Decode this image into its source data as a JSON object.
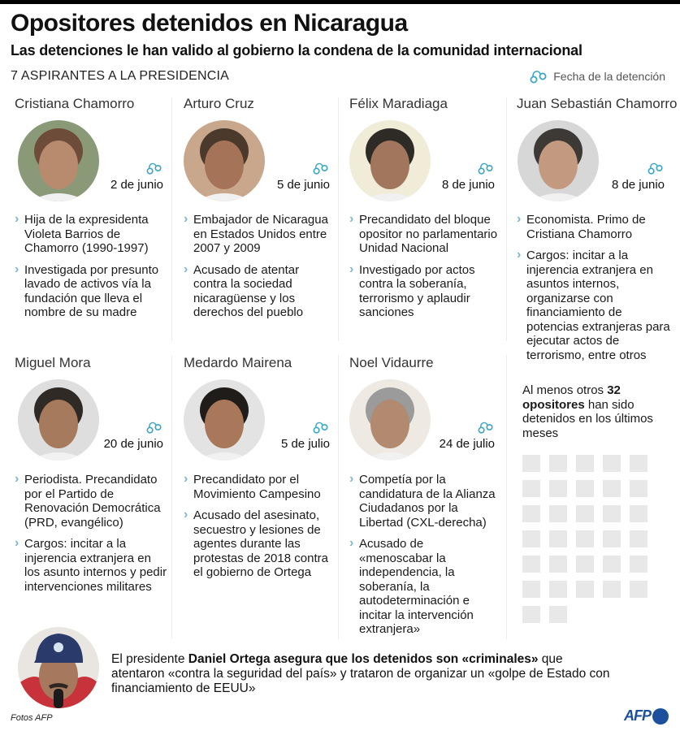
{
  "header": {
    "title": "Opositores detenidos en Nicaragua",
    "subtitle": "Las detenciones le han valido al gobierno la condena de la comunidad internacional",
    "section_label": "7 ASPIRANTES A LA PRESIDENCIA",
    "legend": {
      "icon": "handcuffs-icon",
      "label": "Fecha de la detención"
    }
  },
  "colors": {
    "accent": "#3aa6c4",
    "bullet": "#7fb6cf",
    "grid_square": "#e8e8e8",
    "afp_blue": "#1c4f9c",
    "separator": "#ececec"
  },
  "candidates": [
    {
      "name": "Cristiana Chamorro",
      "date": "2 de junio",
      "photo_tone": [
        "#b88a6e",
        "#6d4c3a",
        "#8a9a78"
      ],
      "bullets": [
        "Hija de la expresidenta Violeta Barrios de Chamorro (1990-1997)",
        "Investigada por presunto lavado de activos vía la fundación que lleva el nombre de su madre"
      ]
    },
    {
      "name": "Arturo Cruz",
      "date": "5 de junio",
      "photo_tone": [
        "#a57458",
        "#4b3a2c",
        "#c9a78c"
      ],
      "bullets": [
        "Embajador de Nicaragua en Estados Unidos entre 2007 y 2009",
        "Acusado de atentar contra la sociedad nicaragüense y los derechos del pueblo"
      ]
    },
    {
      "name": "Félix Maradiaga",
      "date": "8 de junio",
      "photo_tone": [
        "#a1765c",
        "#2e2a26",
        "#f0ecd8"
      ],
      "bullets": [
        "Precandidato del bloque opositor no parlamentario Unidad Nacional",
        "Investigado por actos contra la soberanía, terrorismo y aplaudir sanciones"
      ]
    },
    {
      "name": "Juan Sebastián Chamorro",
      "date": "8 de junio",
      "photo_tone": [
        "#c39a80",
        "#3d3a36",
        "#d7d7d7"
      ],
      "bullets": [
        "Economista. Primo de Cristiana Chamorro",
        "Cargos: incitar a la injerencia extranjera en asuntos internos, organizarse con financiamiento de potencias extranjeras para ejecutar actos de terrorismo, entre otros"
      ]
    },
    {
      "name": "Miguel Mora",
      "date": "20 de junio",
      "photo_tone": [
        "#a67a5c",
        "#2f2a26",
        "#dedede"
      ],
      "bullets": [
        "Periodista. Precandidato por el Partido de Renovación Democrática (PRD, evangélico)",
        "Cargos: incitar a la injerencia extranjera en los asunto internos y pedir intervenciones militares"
      ]
    },
    {
      "name": "Medardo Mairena",
      "date": "5 de julio",
      "photo_tone": [
        "#a9785a",
        "#1f1c1a",
        "#e3e3e3"
      ],
      "bullets": [
        "Precandidato por el Movimiento Campesino",
        "Acusado del asesinato, secuestro y lesiones de agentes durante las protestas de 2018 contra el gobierno de Ortega"
      ]
    },
    {
      "name": "Noel Vidaurre",
      "date": "24 de julio",
      "photo_tone": [
        "#b28a70",
        "#9b9b9b",
        "#efe9e3"
      ],
      "bullets": [
        "Competía por la candidatura de la Alianza Ciudadanos por la Libertad (CXL-derecha)",
        "Acusado de «menoscabar la independencia, la soberanía, la autodeterminación e incitar la intervención extranjera»"
      ]
    }
  ],
  "others": {
    "prefix": "Al menos otros ",
    "count": "32",
    "bold_word": "opositores",
    "suffix": " han sido detenidos en los últimos meses",
    "squares": 32
  },
  "ortega": {
    "prefix": "El presidente ",
    "bold": "Daniel Ortega asegura que los detenidos son «criminales»",
    "rest": " que atentaron «contra la seguridad del país» y trataron de organizar un «golpe de Estado con financiamiento de EEUU»"
  },
  "footer": {
    "credit": "Fotos AFP",
    "logo_text": "AFP"
  }
}
